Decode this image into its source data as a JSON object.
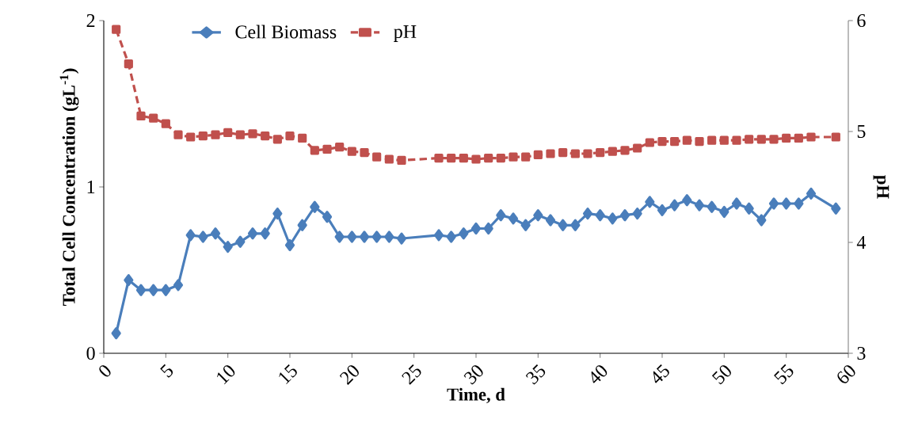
{
  "chart_data": {
    "type": "line",
    "xlabel": "Time, d",
    "ylabel": "Total Cell Concentration (gL$^{-1}$)",
    "y2label": "pH",
    "x": [
      1,
      2,
      3,
      4,
      5,
      6,
      7,
      8,
      9,
      10,
      11,
      12,
      13,
      14,
      15,
      16,
      17,
      18,
      19,
      20,
      21,
      22,
      23,
      24,
      27,
      28,
      29,
      30,
      31,
      32,
      33,
      34,
      35,
      36,
      37,
      38,
      39,
      40,
      41,
      42,
      43,
      44,
      45,
      46,
      47,
      48,
      49,
      50,
      51,
      52,
      53,
      54,
      55,
      56,
      57,
      59
    ],
    "series": [
      {
        "name": "Cell Biomass",
        "color": "#4a7ebb",
        "marker": "diamond",
        "line_style": "solid",
        "values": [
          0.12,
          0.44,
          0.38,
          0.38,
          0.38,
          0.41,
          0.71,
          0.7,
          0.72,
          0.64,
          0.67,
          0.72,
          0.72,
          0.84,
          0.65,
          0.77,
          0.88,
          0.82,
          0.7,
          0.7,
          0.7,
          0.7,
          0.7,
          0.69,
          0.71,
          0.7,
          0.72,
          0.75,
          0.75,
          0.83,
          0.81,
          0.77,
          0.83,
          0.8,
          0.77,
          0.77,
          0.84,
          0.83,
          0.81,
          0.83,
          0.84,
          0.91,
          0.86,
          0.89,
          0.92,
          0.89,
          0.88,
          0.85,
          0.9,
          0.87,
          0.8,
          0.9,
          0.9,
          0.9,
          0.96,
          0.87
        ]
      },
      {
        "name": "pH",
        "color": "#c0504d",
        "marker": "square",
        "line_style": "dashed",
        "axis": "y2",
        "values": [
          5.92,
          5.61,
          5.14,
          5.12,
          5.07,
          4.97,
          4.95,
          4.96,
          4.97,
          4.99,
          4.97,
          4.98,
          4.96,
          4.93,
          4.96,
          4.94,
          4.83,
          4.84,
          4.86,
          4.82,
          4.81,
          4.77,
          4.75,
          4.74,
          4.76,
          4.76,
          4.76,
          4.75,
          4.76,
          4.76,
          4.77,
          4.77,
          4.79,
          4.8,
          4.81,
          4.8,
          4.8,
          4.81,
          4.82,
          4.83,
          4.85,
          4.9,
          4.91,
          4.91,
          4.92,
          4.91,
          4.92,
          4.92,
          4.92,
          4.93,
          4.93,
          4.93,
          4.94,
          4.94,
          4.95,
          4.95
        ]
      }
    ],
    "xlim": [
      0,
      60
    ],
    "xticks": [
      0,
      5,
      10,
      15,
      20,
      25,
      30,
      35,
      40,
      45,
      50,
      55,
      60
    ],
    "ylim": [
      0,
      2
    ],
    "yticks": [
      0,
      1,
      2
    ],
    "y2lim": [
      3,
      6
    ],
    "y2ticks": [
      3,
      4,
      5,
      6
    ],
    "legend": "top",
    "grid": false
  }
}
